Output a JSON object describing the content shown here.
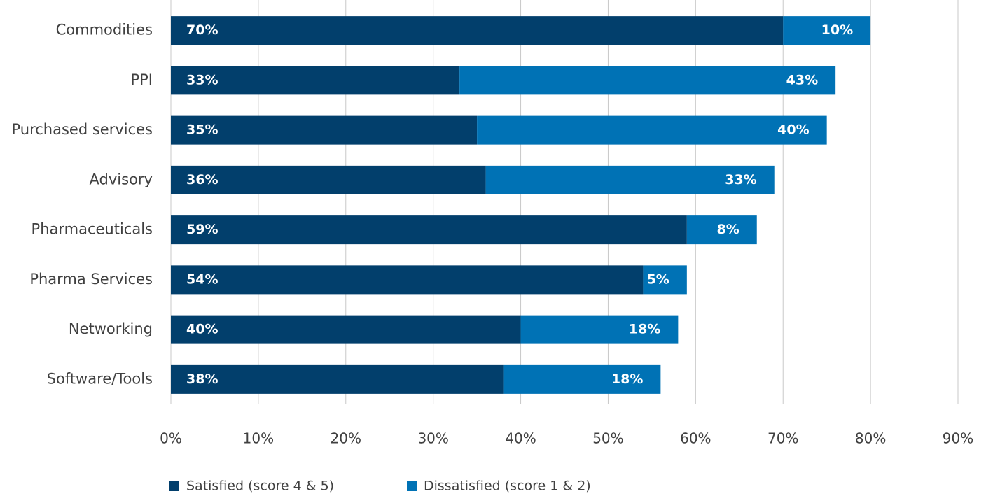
{
  "chart_data": {
    "type": "stacked-bar-horizontal",
    "categories": [
      "Commodities",
      "PPI",
      "Purchased services",
      "Advisory",
      "Pharmaceuticals",
      "Pharma Services",
      "Networking",
      "Software/Tools"
    ],
    "series": [
      {
        "name": "Satisfied (score 4 & 5)",
        "color": "#023f6c",
        "values": [
          70,
          33,
          35,
          36,
          59,
          54,
          40,
          38
        ],
        "value_labels": [
          "70%",
          "33%",
          "35%",
          "36%",
          "59%",
          "54%",
          "40%",
          "38%"
        ]
      },
      {
        "name": "Dissatisfied (score 1 & 2)",
        "color": "#0072b5",
        "values": [
          10,
          43,
          40,
          33,
          8,
          5,
          18,
          18
        ],
        "value_labels": [
          "10%",
          "43%",
          "40%",
          "33%",
          "8%",
          "5%",
          "18%",
          "18%"
        ]
      }
    ],
    "xlim": [
      0,
      90
    ],
    "xticks": [
      {
        "value": 0,
        "label": "0%"
      },
      {
        "value": 10,
        "label": "10%"
      },
      {
        "value": 20,
        "label": "20%"
      },
      {
        "value": 30,
        "label": "30%"
      },
      {
        "value": 40,
        "label": "40%"
      },
      {
        "value": 50,
        "label": "50%"
      },
      {
        "value": 60,
        "label": "60%"
      },
      {
        "value": 70,
        "label": "70%"
      },
      {
        "value": 80,
        "label": "80%"
      },
      {
        "value": 90,
        "label": "90%"
      }
    ],
    "grid": true,
    "legend": "bottom"
  }
}
